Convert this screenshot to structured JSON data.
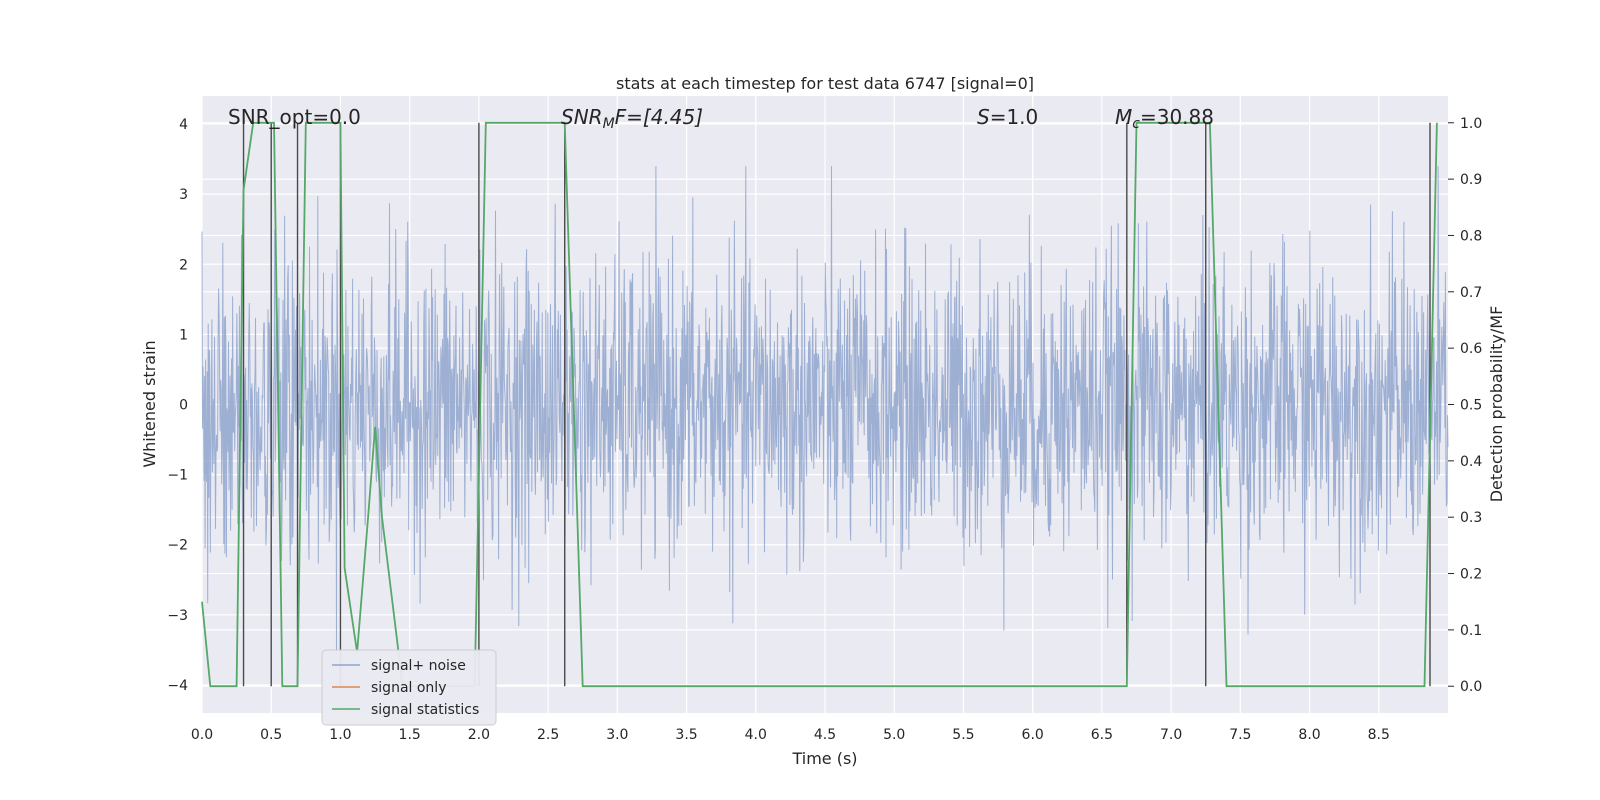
{
  "chart_data": {
    "type": "line",
    "title": "stats at each timestep for test data 6747 [signal=0]",
    "xlabel": "Time (s)",
    "ylabel": "Whitened strain",
    "y2label": "Detection probability/MF",
    "xlim": [
      0.0,
      9.0
    ],
    "ylim": [
      -4.4,
      4.4
    ],
    "y2lim": [
      -0.0475,
      1.0475
    ],
    "grid": true,
    "legend_position": "lower-left",
    "xticks": [
      "0.0",
      "0.5",
      "1.0",
      "1.5",
      "2.0",
      "2.5",
      "3.0",
      "3.5",
      "4.0",
      "4.5",
      "5.0",
      "5.5",
      "6.0",
      "6.5",
      "7.0",
      "7.5",
      "8.0",
      "8.5"
    ],
    "yticks": [
      "4",
      "3",
      "2",
      "1",
      "0",
      "−1",
      "−2",
      "−3",
      "−4"
    ],
    "y2ticks": [
      "1.0",
      "0.9",
      "0.8",
      "0.7",
      "0.6",
      "0.5",
      "0.4",
      "0.3",
      "0.2",
      "0.1",
      "0.0"
    ],
    "annotations": {
      "snr_opt": "SNR_opt=0.0",
      "snr_mf_main": "SNR",
      "snr_mf_sub": "M",
      "snr_mf_rest": "F=[4.45]",
      "s_var": "S",
      "s_rest": "=1.0",
      "mc_main": "M",
      "mc_sub": "c",
      "mc_rest": "=30.88"
    },
    "series": [
      {
        "name": "signal+ noise",
        "color": "#8fa4cc",
        "description_of_values": "whitened noise, amplitude mostly within ±2.5, peaks up to ~3.4 and down to ~-3.9",
        "envelope_upper_peak": 3.4,
        "envelope_lower_peak": -3.9
      },
      {
        "name": "signal only",
        "color": "#dd8452",
        "values": []
      },
      {
        "name": "signal statistics",
        "color": "#55a868",
        "axis": "right",
        "x": [
          0.0,
          0.06,
          0.25,
          0.3,
          0.37,
          0.48,
          0.52,
          0.58,
          0.65,
          0.69,
          0.75,
          0.98,
          1.0,
          1.03,
          1.12,
          1.2,
          1.25,
          1.3,
          1.45,
          1.9,
          1.97,
          2.05,
          2.58,
          2.62,
          2.75,
          2.8,
          6.65,
          6.68,
          6.75,
          7.25,
          7.28,
          7.4,
          8.78,
          8.83,
          8.92
        ],
        "y": [
          0.15,
          0.0,
          0.0,
          0.88,
          1.0,
          1.0,
          1.0,
          0.0,
          0.0,
          0.0,
          1.0,
          1.0,
          1.0,
          0.21,
          0.06,
          0.3,
          0.46,
          0.3,
          0.0,
          0.0,
          0.0,
          1.0,
          1.0,
          1.0,
          0.0,
          0.0,
          0.0,
          0.0,
          1.0,
          1.0,
          1.0,
          0.0,
          0.0,
          0.0,
          1.0
        ]
      }
    ],
    "vertical_lines": [
      0.3,
      0.5,
      0.69,
      1.0,
      2.0,
      2.62,
      6.68,
      7.25,
      8.87
    ],
    "vertical_line_color": "#4a4a4a"
  }
}
